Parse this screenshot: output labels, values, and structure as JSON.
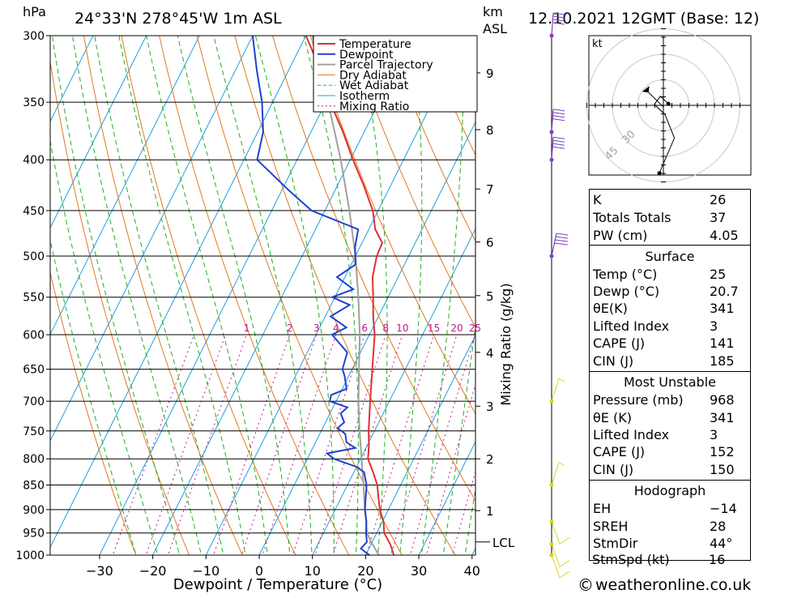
{
  "header": {
    "hpa_unit": "hPa",
    "location": "24°33'N  278°45'W  1m  ASL",
    "km_unit": "km",
    "asl_unit": "ASL",
    "datetime": "12.10.2021  12GMT  (Base: 12)"
  },
  "colors": {
    "temperature": "#e03030",
    "dewpoint": "#2040d0",
    "parcel": "#a0a0a0",
    "dry_adiabat": "#e07a20",
    "wet_adiabat": "#20b020",
    "isotherm": "#20a0e0",
    "mixing_ratio": "#c0188c",
    "wind": "#8040c0"
  },
  "chart_data": {
    "type": "line",
    "title": "",
    "xlabel": "Dewpoint / Temperature (°C)",
    "ylabel": "hPa",
    "right_axis_label": "Mixing Ratio (g/kg)",
    "x_ticks": [
      -30,
      -20,
      -10,
      0,
      10,
      20,
      30,
      40
    ],
    "x_tick_labels": [
      "−30",
      "−20",
      "−10",
      "0",
      "10",
      "20",
      "30",
      "40"
    ],
    "pressure_levels": [
      300,
      350,
      400,
      450,
      500,
      550,
      600,
      650,
      700,
      750,
      800,
      850,
      900,
      950,
      1000
    ],
    "pressure_labels": [
      "300",
      "350",
      "400",
      "450",
      "500",
      "550",
      "600",
      "650",
      "700",
      "750",
      "800",
      "850",
      "900",
      "950",
      "1000"
    ],
    "xlim": [
      -40,
      40
    ],
    "ylim": [
      1000,
      300
    ],
    "grid": true,
    "height_km": [
      {
        "label": "1",
        "pressure": 902
      },
      {
        "label": "2",
        "pressure": 800
      },
      {
        "label": "3",
        "pressure": 708
      },
      {
        "label": "4",
        "pressure": 625
      },
      {
        "label": "5",
        "pressure": 548
      },
      {
        "label": "6",
        "pressure": 484
      },
      {
        "label": "7",
        "pressure": 428
      },
      {
        "label": "8",
        "pressure": 373
      },
      {
        "label": "9",
        "pressure": 327
      }
    ],
    "lcl": {
      "label": "LCL",
      "pressure": 970
    },
    "mixing_ratio_labels": [
      {
        "label": "1",
        "value": 1
      },
      {
        "label": "2",
        "value": 2
      },
      {
        "label": "3",
        "value": 3
      },
      {
        "label": "4",
        "value": 4
      },
      {
        "label": "6",
        "value": 6
      },
      {
        "label": "8",
        "value": 8
      },
      {
        "label": "10",
        "value": 10
      },
      {
        "label": "15",
        "value": 15
      },
      {
        "label": "20",
        "value": 20
      },
      {
        "label": "25",
        "value": 25
      }
    ],
    "legend": {
      "placement": "top-right",
      "entries": [
        "Temperature",
        "Dewpoint",
        "Parcel Trajectory",
        "Dry Adiabat",
        "Wet Adiabat",
        "Isotherm",
        "Mixing Ratio"
      ]
    },
    "series": [
      {
        "name": "Temperature",
        "points": [
          [
            1000,
            25.3
          ],
          [
            975,
            23.6
          ],
          [
            950,
            21.4
          ],
          [
            925,
            20.2
          ],
          [
            900,
            18.4
          ],
          [
            875,
            17.0
          ],
          [
            850,
            15.6
          ],
          [
            825,
            13.6
          ],
          [
            800,
            11.4
          ],
          [
            775,
            10.3
          ],
          [
            750,
            8.9
          ],
          [
            700,
            6.4
          ],
          [
            650,
            3.8
          ],
          [
            600,
            1.0
          ],
          [
            575,
            -1.0
          ],
          [
            550,
            -2.8
          ],
          [
            525,
            -4.8
          ],
          [
            500,
            -6.0
          ],
          [
            485,
            -6.2
          ],
          [
            470,
            -8.8
          ],
          [
            450,
            -11.0
          ],
          [
            425,
            -15.0
          ],
          [
            400,
            -19.5
          ],
          [
            375,
            -24.0
          ],
          [
            350,
            -29.2
          ],
          [
            325,
            -34.0
          ],
          [
            300,
            -40.0
          ]
        ]
      },
      {
        "name": "Dewpoint",
        "points": [
          [
            1000,
            20.7
          ],
          [
            985,
            18.5
          ],
          [
            970,
            19.0
          ],
          [
            950,
            18.0
          ],
          [
            925,
            17.0
          ],
          [
            900,
            15.6
          ],
          [
            875,
            14.6
          ],
          [
            850,
            13.6
          ],
          [
            825,
            11.9
          ],
          [
            815,
            10.0
          ],
          [
            800,
            5.0
          ],
          [
            790,
            3.2
          ],
          [
            780,
            8.0
          ],
          [
            770,
            5.8
          ],
          [
            755,
            4.8
          ],
          [
            745,
            2.8
          ],
          [
            735,
            3.5
          ],
          [
            720,
            2.0
          ],
          [
            710,
            2.7
          ],
          [
            700,
            -1.2
          ],
          [
            690,
            -1.5
          ],
          [
            680,
            0.8
          ],
          [
            660,
            -0.8
          ],
          [
            650,
            -1.8
          ],
          [
            625,
            -2.5
          ],
          [
            600,
            -7.0
          ],
          [
            590,
            -5.0
          ],
          [
            575,
            -9.0
          ],
          [
            560,
            -6.5
          ],
          [
            550,
            -10.5
          ],
          [
            540,
            -7.3
          ],
          [
            525,
            -11.5
          ],
          [
            510,
            -9.2
          ],
          [
            500,
            -10.0
          ],
          [
            490,
            -10.9
          ],
          [
            470,
            -12.0
          ],
          [
            450,
            -22.5
          ],
          [
            430,
            -28.5
          ],
          [
            400,
            -37.5
          ],
          [
            375,
            -39.0
          ],
          [
            350,
            -42.0
          ],
          [
            325,
            -46.0
          ],
          [
            300,
            -50.0
          ]
        ]
      },
      {
        "name": "Parcel Trajectory",
        "points": [
          [
            1000,
            22.5
          ],
          [
            970,
            19.8
          ],
          [
            950,
            18.2
          ],
          [
            900,
            15.6
          ],
          [
            850,
            13.0
          ],
          [
            800,
            10.2
          ],
          [
            750,
            7.2
          ],
          [
            700,
            4.2
          ],
          [
            650,
            1.3
          ],
          [
            600,
            -1.8
          ],
          [
            550,
            -5.6
          ],
          [
            500,
            -10.0
          ],
          [
            450,
            -15.4
          ],
          [
            400,
            -21.8
          ],
          [
            350,
            -29.6
          ],
          [
            300,
            -38.8
          ]
        ]
      }
    ]
  },
  "wind": {
    "barb_levels": [
      1000,
      975,
      925,
      850,
      700,
      500,
      400,
      375,
      300
    ]
  },
  "hodograph": {
    "unit": "kt",
    "ring_labels": [
      "30",
      "45"
    ],
    "points": [
      [
        -0.8,
        13.5
      ],
      [
        2.2,
        6.5
      ],
      [
        0.3,
        1.8
      ],
      [
        -1.8,
        -0.2
      ],
      [
        -0.6,
        -1.8
      ],
      [
        1.0,
        -0.3
      ]
    ],
    "storm_motion": [
      -3.6,
      -3.2
    ]
  },
  "indices": {
    "rows": [
      {
        "label": "K",
        "value": "26"
      },
      {
        "label": "Totals Totals",
        "value": "37"
      },
      {
        "label": "PW (cm)",
        "value": "4.05"
      }
    ]
  },
  "surface": {
    "title": "Surface",
    "rows": [
      {
        "label": "Temp (°C)",
        "value": "25"
      },
      {
        "label": "Dewp (°C)",
        "value": "20.7"
      },
      {
        "label": "θE(K)",
        "value": "341"
      },
      {
        "label": "Lifted Index",
        "value": "3"
      },
      {
        "label": "CAPE (J)",
        "value": "141"
      },
      {
        "label": "CIN (J)",
        "value": "185"
      }
    ]
  },
  "most_unstable": {
    "title": "Most Unstable",
    "rows": [
      {
        "label": "Pressure (mb)",
        "value": "968"
      },
      {
        "label": "θE (K)",
        "value": "341"
      },
      {
        "label": "Lifted Index",
        "value": "3"
      },
      {
        "label": "CAPE (J)",
        "value": "152"
      },
      {
        "label": "CIN (J)",
        "value": "150"
      }
    ]
  },
  "hodograph_params": {
    "title": "Hodograph",
    "rows": [
      {
        "label": "EH",
        "value": "−14"
      },
      {
        "label": "SREH",
        "value": "28"
      },
      {
        "label": "StmDir",
        "value": "44°"
      },
      {
        "label": "StmSpd (kt)",
        "value": "16"
      }
    ]
  },
  "footer": {
    "copyright_symbol": "©",
    "site": "weatheronline.co.uk"
  }
}
